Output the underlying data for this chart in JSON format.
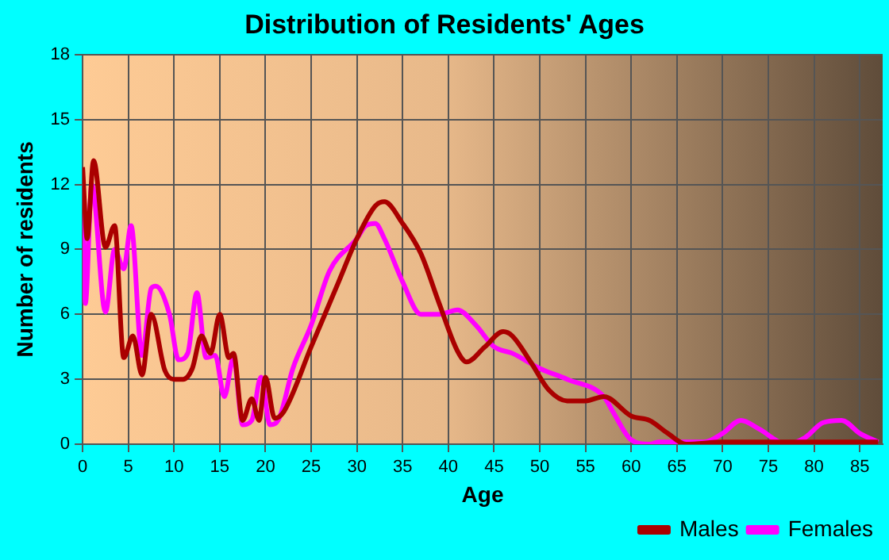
{
  "chart_data": {
    "type": "line",
    "title": "Distribution of Residents' Ages",
    "xlabel": "Age",
    "ylabel": "Number of residents",
    "xlim": [
      0,
      87.5
    ],
    "xticks": [
      0,
      5,
      10,
      15,
      20,
      25,
      30,
      35,
      40,
      45,
      50,
      55,
      60,
      65,
      70,
      75,
      80,
      85
    ],
    "ylim": [
      0,
      18
    ],
    "yticks": [
      0,
      3,
      6,
      9,
      12,
      15,
      18
    ],
    "grid": true,
    "legend": "bottom right",
    "marker": "none",
    "line_style": "solid",
    "series": [
      {
        "name": "Males",
        "color": "#aa0000",
        "x": [
          0,
          0.5,
          1.2,
          2.5,
          3.5,
          4.5,
          5.5,
          6.5,
          7.5,
          9,
          10,
          11,
          12,
          13,
          14,
          15,
          16,
          16.5,
          17.5,
          18.5,
          19.3,
          20,
          21,
          22,
          25,
          28,
          30,
          32,
          33,
          35,
          37,
          39,
          41,
          42,
          44,
          46,
          47,
          49,
          51,
          53,
          55,
          57,
          60,
          62,
          64,
          66,
          70,
          87
        ],
        "values": [
          12.8,
          9.5,
          13.1,
          9.1,
          10.1,
          4,
          5,
          3.2,
          6,
          3.4,
          3,
          3,
          3.5,
          5,
          4.2,
          6,
          4,
          4.2,
          1.1,
          2.1,
          1.1,
          3.1,
          1.2,
          1.5,
          4.5,
          7.5,
          9.5,
          11,
          11.2,
          10.2,
          8.8,
          6.5,
          4.3,
          3.8,
          4.5,
          5.2,
          5,
          3.8,
          2.5,
          2,
          2,
          2.2,
          1.3,
          1.1,
          0.5,
          0,
          0.1,
          0.1
        ]
      },
      {
        "name": "Females",
        "color": "#ff00ff",
        "x": [
          0,
          0.3,
          1,
          2.5,
          3.5,
          4.5,
          5.3,
          6.5,
          7.5,
          8,
          9.5,
          10.5,
          11.5,
          12.5,
          13.5,
          14.5,
          15.5,
          16.5,
          17.5,
          18.5,
          19.5,
          20.5,
          21.5,
          23,
          25,
          27,
          30,
          31,
          32,
          33,
          35,
          37,
          39,
          41,
          43,
          45,
          47,
          50,
          53,
          57,
          58,
          60,
          62,
          63,
          66,
          68,
          70,
          72,
          74,
          77,
          79,
          81,
          83,
          85,
          87
        ],
        "values": [
          12,
          6.5,
          12,
          6.1,
          9,
          8.1,
          10.1,
          4.1,
          7.2,
          7.3,
          6,
          3.9,
          4.2,
          7,
          4,
          4.1,
          2.2,
          4,
          0.9,
          1.1,
          3.1,
          0.9,
          1.2,
          3.5,
          5.5,
          8,
          9.5,
          10.1,
          10.2,
          9.5,
          7.5,
          6,
          6,
          6.2,
          5.5,
          4.5,
          4.2,
          3.5,
          3,
          2.2,
          1.5,
          0.2,
          0,
          0.1,
          0.1,
          0.1,
          0.5,
          1.1,
          0.7,
          0,
          0.3,
          1,
          1.1,
          0.5,
          0.1
        ]
      }
    ]
  }
}
